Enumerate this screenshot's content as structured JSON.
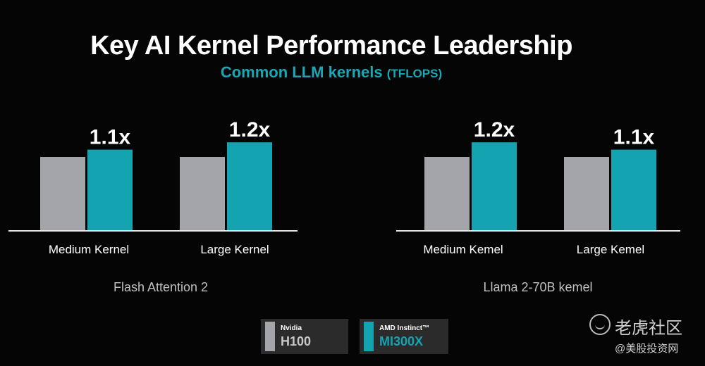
{
  "header": {
    "title": "Key AI Kernel Performance Leadership",
    "subtitle": "Common LLM kernels",
    "subtitle_unit": "(TFLOPS)"
  },
  "colors": {
    "nvidia": "#a3a5aa",
    "amd": "#14a3b1",
    "axis": "#e6e6e6"
  },
  "chart_data": [
    {
      "type": "bar",
      "caption": "Flash Attention 2",
      "categories": [
        "Medium Kernel",
        "Large Kernel"
      ],
      "series": [
        {
          "name": "H100",
          "values": [
            1.0,
            1.0
          ]
        },
        {
          "name": "MI300X",
          "values": [
            1.1,
            1.2
          ]
        }
      ],
      "labels": [
        "1.1x",
        "1.2x"
      ]
    },
    {
      "type": "bar",
      "caption": "Llama 2-70B kemel",
      "categories": [
        "Medium Kemel",
        "Large Kemel"
      ],
      "series": [
        {
          "name": "H100",
          "values": [
            1.0,
            1.0
          ]
        },
        {
          "name": "MI300X",
          "values": [
            1.2,
            1.1
          ]
        }
      ],
      "labels": [
        "1.2x",
        "1.1x"
      ]
    }
  ],
  "legend": [
    {
      "vendor": "Nvidia",
      "product": "H100"
    },
    {
      "vendor": "AMD Instinct™",
      "product": "MI300X"
    }
  ],
  "watermark": {
    "main": "老虎社区",
    "sub": "@美股投资网"
  }
}
